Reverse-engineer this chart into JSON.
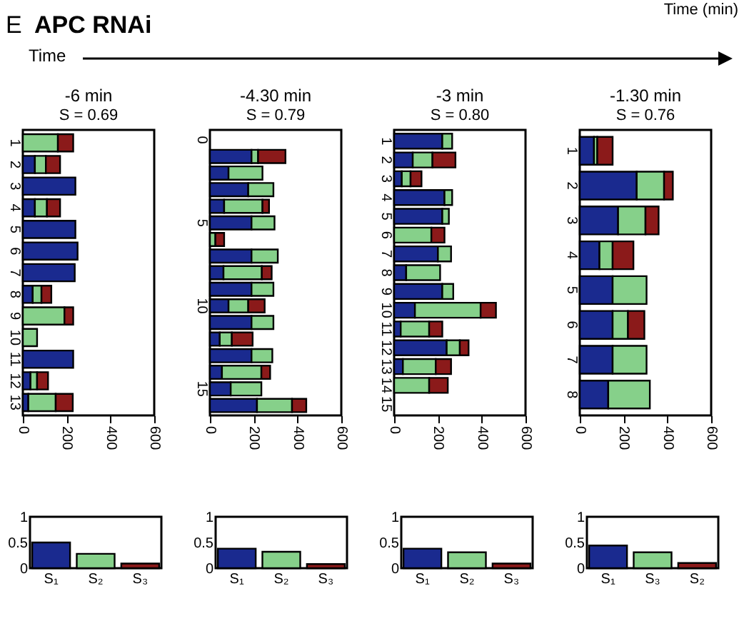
{
  "chart_data": [
    {
      "type": "bar",
      "orientation": "horizontal",
      "stacked": true,
      "title": "-6 min",
      "subtitle": "S = 0.69",
      "annotations": [
        "Time (min)",
        "E",
        "APC RNAi",
        "Time"
      ],
      "categories": [
        "1",
        "2",
        "3",
        "4",
        "5",
        "6",
        "7",
        "8",
        "9",
        "10",
        "11",
        "12",
        "13"
      ],
      "series": [
        {
          "color": "#1a2a8f",
          "values": [
            null,
            55,
            240,
            55,
            240,
            250,
            237,
            45,
            null,
            null,
            230,
            35,
            25
          ]
        },
        {
          "color": "#86d08a",
          "values": [
            160,
            50,
            null,
            55,
            null,
            null,
            null,
            40,
            190,
            65,
            null,
            30,
            125
          ]
        },
        {
          "color": "#8b1a1a",
          "values": [
            70,
            65,
            null,
            60,
            null,
            null,
            null,
            45,
            40,
            null,
            null,
            50,
            78
          ]
        }
      ],
      "xlim": [
        0,
        600
      ],
      "xticks": [
        0,
        200,
        400,
        600
      ]
    },
    {
      "type": "bar",
      "orientation": "horizontal",
      "stacked": true,
      "title": "-4.30 min",
      "subtitle": "S = 0.79",
      "categories": [
        "0",
        null,
        null,
        null,
        null,
        "5",
        null,
        null,
        null,
        null,
        "10",
        null,
        null,
        null,
        null,
        "15",
        null
      ],
      "series": [
        {
          "color": "#1a2a8f",
          "values": [
            null,
            190,
            85,
            175,
            65,
            190,
            null,
            190,
            62,
            190,
            85,
            190,
            45,
            190,
            55,
            95,
            215
          ]
        },
        {
          "color": "#86d08a",
          "values": [
            null,
            30,
            155,
            115,
            175,
            105,
            25,
            120,
            175,
            100,
            90,
            100,
            55,
            95,
            180,
            140,
            160
          ]
        },
        {
          "color": "#8b1a1a",
          "values": [
            null,
            125,
            null,
            null,
            30,
            null,
            40,
            null,
            45,
            null,
            75,
            null,
            95,
            null,
            40,
            null,
            65
          ]
        }
      ],
      "xlim": [
        0,
        600
      ],
      "xticks": [
        0,
        200,
        400,
        600
      ]
    },
    {
      "type": "bar",
      "orientation": "horizontal",
      "stacked": true,
      "title": "-3 min",
      "subtitle": "S = 0.80",
      "categories": [
        "1",
        "2",
        "3",
        "4",
        "5",
        "6",
        "7",
        "8",
        "9",
        "10",
        "11",
        "12",
        "13",
        "14",
        "15"
      ],
      "series": [
        {
          "color": "#1a2a8f",
          "values": [
            220,
            85,
            35,
            230,
            220,
            null,
            200,
            55,
            220,
            95,
            30,
            240,
            40,
            null,
            null
          ]
        },
        {
          "color": "#86d08a",
          "values": [
            45,
            90,
            40,
            35,
            30,
            170,
            60,
            155,
            50,
            300,
            130,
            60,
            150,
            160,
            null
          ]
        },
        {
          "color": "#8b1a1a",
          "values": [
            null,
            105,
            50,
            null,
            null,
            60,
            null,
            null,
            null,
            70,
            60,
            40,
            70,
            85,
            null
          ]
        }
      ],
      "xlim": [
        0,
        600
      ],
      "xticks": [
        0,
        200,
        400,
        600
      ]
    },
    {
      "type": "bar",
      "orientation": "horizontal",
      "stacked": true,
      "title": "-1.30 min",
      "subtitle": "S = 0.76",
      "categories": [
        "1",
        "2",
        "3",
        "4",
        "5",
        "6",
        "7",
        "8"
      ],
      "series": [
        {
          "color": "#1a2a8f",
          "values": [
            65,
            260,
            175,
            90,
            150,
            150,
            150,
            130
          ]
        },
        {
          "color": "#86d08a",
          "values": [
            15,
            125,
            125,
            60,
            155,
            70,
            155,
            190
          ]
        },
        {
          "color": "#8b1a1a",
          "values": [
            70,
            40,
            60,
            95,
            null,
            75,
            null,
            null
          ]
        }
      ],
      "xlim": [
        0,
        600
      ],
      "xticks": [
        0,
        200,
        400,
        600
      ]
    },
    {
      "type": "bar",
      "categories": [
        "S₁",
        "S₂",
        "S₃"
      ],
      "values": [
        0.5,
        0.28,
        0.09
      ],
      "colors": [
        "#1a2a8f",
        "#86d08a",
        "#8b1a1a"
      ],
      "ylim": [
        0,
        1
      ],
      "yticks": [
        0,
        0.5,
        1
      ]
    },
    {
      "type": "bar",
      "categories": [
        "S₁",
        "S₂",
        "S₃"
      ],
      "values": [
        0.38,
        0.32,
        0.08
      ],
      "colors": [
        "#1a2a8f",
        "#86d08a",
        "#8b1a1a"
      ],
      "ylim": [
        0,
        1
      ],
      "yticks": [
        0,
        0.5,
        1
      ]
    },
    {
      "type": "bar",
      "categories": [
        "S₁",
        "S₂",
        "S₃"
      ],
      "values": [
        0.38,
        0.31,
        0.09
      ],
      "colors": [
        "#1a2a8f",
        "#86d08a",
        "#8b1a1a"
      ],
      "ylim": [
        0,
        1
      ],
      "yticks": [
        0,
        0.5,
        1
      ]
    },
    {
      "type": "bar",
      "categories": [
        "S₁",
        "S₃",
        "S₂"
      ],
      "values": [
        0.44,
        0.31,
        0.1
      ],
      "colors": [
        "#1a2a8f",
        "#86d08a",
        "#8b1a1a"
      ],
      "ylim": [
        0,
        1
      ],
      "yticks": [
        0,
        0.5,
        1
      ]
    }
  ]
}
